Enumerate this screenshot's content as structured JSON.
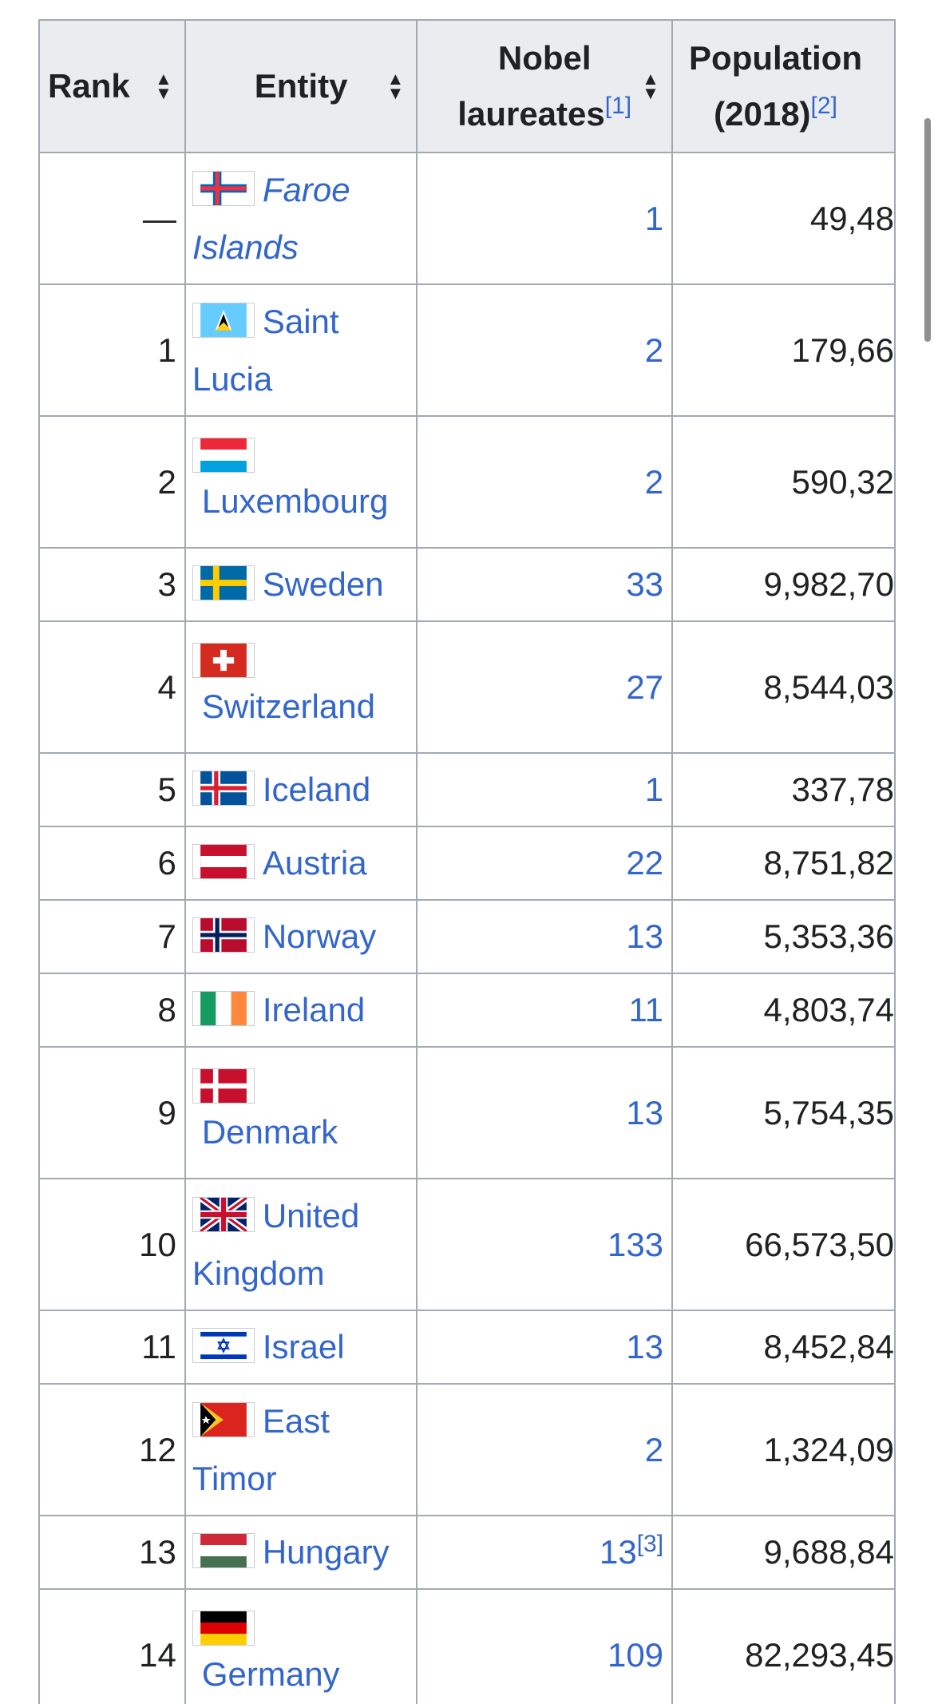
{
  "table": {
    "headers": {
      "rank": "Rank",
      "entity": "Entity",
      "laureates_line1": "Nobel",
      "laureates_line2": "laureates",
      "laureates_ref": "[1]",
      "population_line1": "Population",
      "population_line2": "(2018)",
      "population_ref": "[2]"
    },
    "rows": [
      {
        "rank": "—",
        "entity_a": "Faroe",
        "entity_b": "Islands",
        "laureates": "1",
        "population": "49,48",
        "flag": "faroe-flag-icon"
      },
      {
        "rank": "1",
        "entity_a": "Saint",
        "entity_b": "Lucia",
        "laureates": "2",
        "population": "179,66",
        "flag": "saint-lucia-flag-icon"
      },
      {
        "rank": "2",
        "entity": "Luxembourg",
        "laureates": "2",
        "population": "590,32",
        "flag": "luxembourg-flag-icon"
      },
      {
        "rank": "3",
        "entity": "Sweden",
        "laureates": "33",
        "population": "9,982,70",
        "flag": "sweden-flag-icon"
      },
      {
        "rank": "4",
        "entity": "Switzerland",
        "laureates": "27",
        "population": "8,544,03",
        "flag": "switzerland-flag-icon"
      },
      {
        "rank": "5",
        "entity": "Iceland",
        "laureates": "1",
        "population": "337,78",
        "flag": "iceland-flag-icon"
      },
      {
        "rank": "6",
        "entity": "Austria",
        "laureates": "22",
        "population": "8,751,82",
        "flag": "austria-flag-icon"
      },
      {
        "rank": "7",
        "entity": "Norway",
        "laureates": "13",
        "population": "5,353,36",
        "flag": "norway-flag-icon"
      },
      {
        "rank": "8",
        "entity": "Ireland",
        "laureates": "11",
        "population": "4,803,74",
        "flag": "ireland-flag-icon"
      },
      {
        "rank": "9",
        "entity": "Denmark",
        "laureates": "13",
        "population": "5,754,35",
        "flag": "denmark-flag-icon"
      },
      {
        "rank": "10",
        "entity_a": "United",
        "entity_b": "Kingdom",
        "laureates": "133",
        "population": "66,573,50",
        "flag": "united-kingdom-flag-icon"
      },
      {
        "rank": "11",
        "entity": "Israel",
        "laureates": "13",
        "population": "8,452,84",
        "flag": "israel-flag-icon"
      },
      {
        "rank": "12",
        "entity_a": "East",
        "entity_b": "Timor",
        "laureates": "2",
        "population": "1,324,09",
        "flag": "east-timor-flag-icon"
      },
      {
        "rank": "13",
        "entity": "Hungary",
        "laureates": "13",
        "laureates_ref": "[3]",
        "population": "9,688,84",
        "flag": "hungary-flag-icon"
      },
      {
        "rank": "14",
        "entity": "Germany",
        "laureates": "109",
        "population": "82,293,45",
        "flag": "germany-flag-icon"
      }
    ]
  },
  "colors": {
    "link": "#3366cc",
    "header_bg": "#eaecf0",
    "border": "#a2a9b1",
    "text": "#202122"
  }
}
